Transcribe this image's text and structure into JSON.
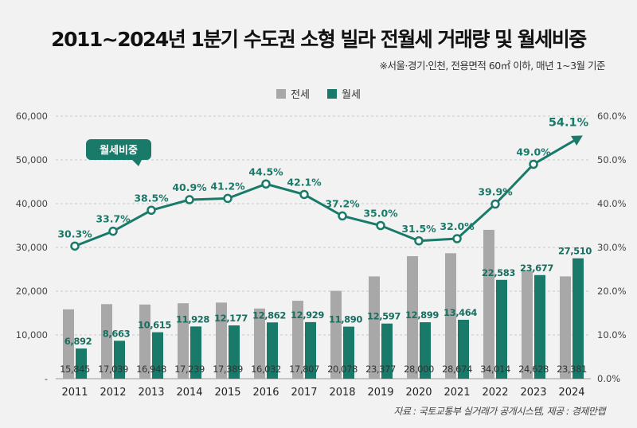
{
  "title": "2011~2024년 1분기 수도권 소형 빌라 전월세 거래량 및 월세비중",
  "subtitle": "※서울·경기·인천, 전용면적 60㎡ 이하, 매년 1~3월 기준",
  "source": "자료 : 국토교통부 실거래가 공개시스템, 제공 : 경제만랩",
  "colors": {
    "jeonse": "#a8a8a8",
    "wolse": "#1a7a6a",
    "line": "#1a7a6a"
  },
  "chart_data": {
    "type": "bar",
    "categories": [
      "2011",
      "2012",
      "2013",
      "2014",
      "2015",
      "2016",
      "2017",
      "2018",
      "2019",
      "2020",
      "2021",
      "2022",
      "2023",
      "2024"
    ],
    "series": [
      {
        "name": "전세",
        "values": [
          15845,
          17039,
          16948,
          17239,
          17389,
          16032,
          17807,
          20078,
          23377,
          28000,
          28674,
          34014,
          24628,
          23381
        ],
        "labels": [
          "15,845",
          "17,039",
          "16,948",
          "17,239",
          "17,389",
          "16,032",
          "17,807",
          "20,078",
          "23,377",
          "28,000",
          "28,674",
          "34,014",
          "24,628",
          "23,381"
        ]
      },
      {
        "name": "월세",
        "values": [
          6892,
          8663,
          10615,
          11928,
          12177,
          12862,
          12929,
          11890,
          12597,
          12899,
          13464,
          22583,
          23677,
          27510
        ],
        "labels": [
          "6,892",
          "8,663",
          "10,615",
          "11,928",
          "12,177",
          "12,862",
          "12,929",
          "11,890",
          "12,597",
          "12,899",
          "13,464",
          "22,583",
          "23,677",
          "27,510"
        ]
      },
      {
        "name": "월세비중",
        "type": "line",
        "values": [
          30.3,
          33.7,
          38.5,
          40.9,
          41.2,
          44.5,
          42.1,
          37.2,
          35.0,
          31.5,
          32.0,
          39.9,
          49.0,
          54.1
        ],
        "labels": [
          "30.3%",
          "33.7%",
          "38.5%",
          "40.9%",
          "41.2%",
          "44.5%",
          "42.1%",
          "37.2%",
          "35.0%",
          "31.5%",
          "32.0%",
          "39.9%",
          "49.0%",
          "54.1%"
        ]
      }
    ],
    "y_left": {
      "ylim": [
        0,
        60000
      ],
      "ticks": [
        "-",
        "10,000",
        "20,000",
        "30,000",
        "40,000",
        "50,000",
        "60,000"
      ]
    },
    "y_right": {
      "ylim": [
        0,
        60
      ],
      "ticks": [
        "0.0%",
        "10.0%",
        "20.0%",
        "30.0%",
        "40.0%",
        "50.0%",
        "60.0%"
      ]
    },
    "line_callout": "월세비중",
    "legend_position": "top-center",
    "grid": true
  }
}
